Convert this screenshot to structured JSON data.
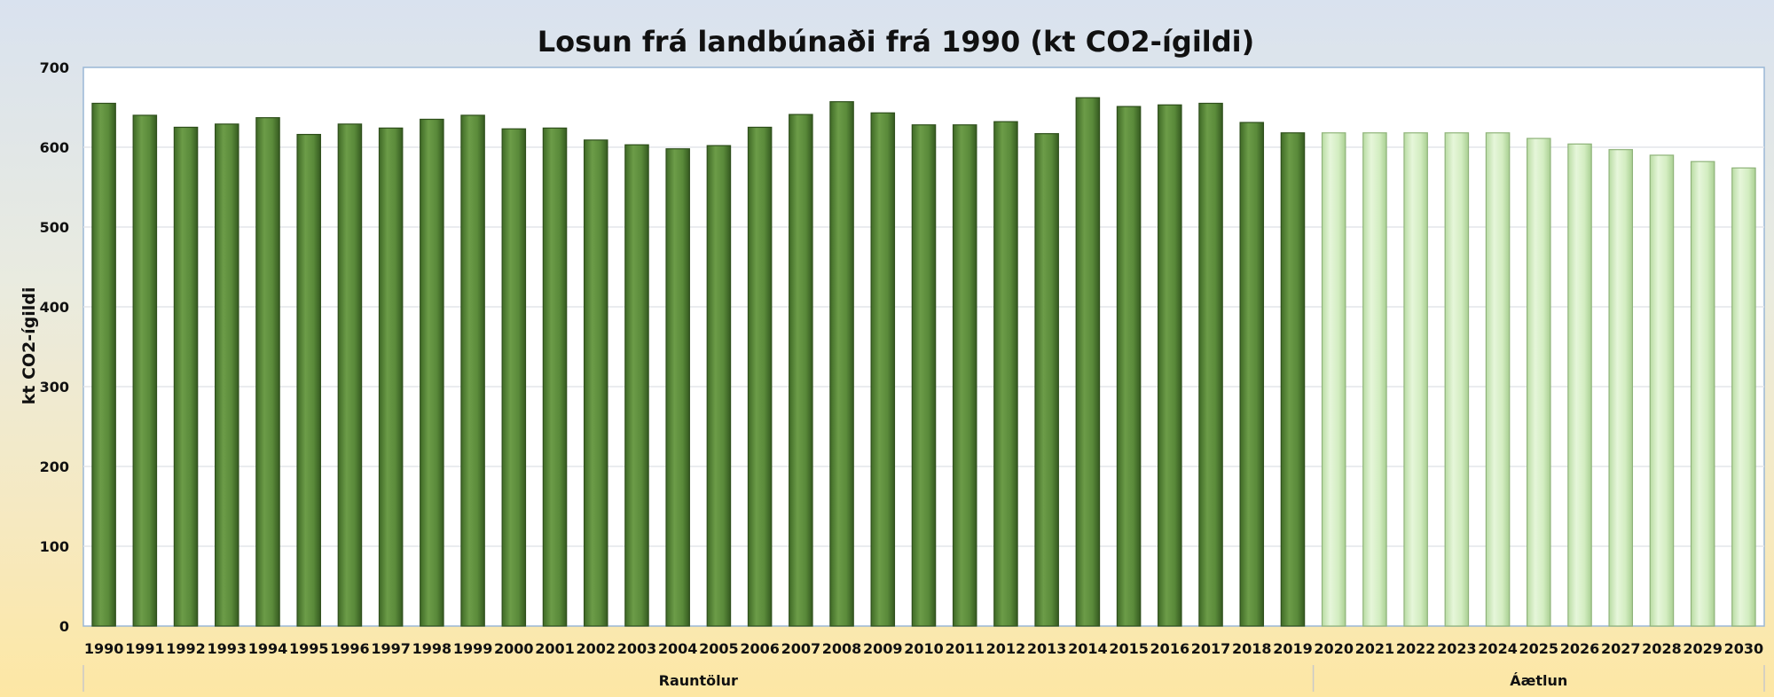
{
  "colors": {
    "actual_fill": "#5a8a3a",
    "actual_stroke": "#2f4f1c",
    "forecast_fill": "#d6efc4",
    "forecast_stroke": "#8fb37a",
    "plot_border": "#9ab7d6"
  },
  "chart_data": {
    "type": "bar",
    "title": "Losun frá landbúnaði frá 1990 (kt CO2-ígildi)",
    "xlabel": "",
    "ylabel": "kt CO2-ígildi",
    "ylim": [
      0,
      700
    ],
    "yticks": [
      0,
      100,
      200,
      300,
      400,
      500,
      600,
      700
    ],
    "grid": true,
    "legend": "none",
    "categories": [
      "1990",
      "1991",
      "1992",
      "1993",
      "1994",
      "1995",
      "1996",
      "1997",
      "1998",
      "1999",
      "2000",
      "2001",
      "2002",
      "2003",
      "2004",
      "2005",
      "2006",
      "2007",
      "2008",
      "2009",
      "2010",
      "2011",
      "2012",
      "2013",
      "2014",
      "2015",
      "2016",
      "2017",
      "2018",
      "2019",
      "2020",
      "2021",
      "2022",
      "2023",
      "2024",
      "2025",
      "2026",
      "2027",
      "2028",
      "2029",
      "2030"
    ],
    "values": [
      655,
      640,
      625,
      629,
      637,
      616,
      629,
      624,
      635,
      640,
      623,
      624,
      609,
      603,
      598,
      602,
      625,
      641,
      657,
      643,
      628,
      628,
      632,
      617,
      662,
      651,
      653,
      655,
      631,
      618,
      618,
      618,
      618,
      618,
      618,
      611,
      604,
      597,
      590,
      582,
      574
    ],
    "groups": [
      {
        "label": "Rauntölur",
        "start_index": 0,
        "end_index": 29
      },
      {
        "label": "Áætlun",
        "start_index": 30,
        "end_index": 40
      }
    ]
  }
}
